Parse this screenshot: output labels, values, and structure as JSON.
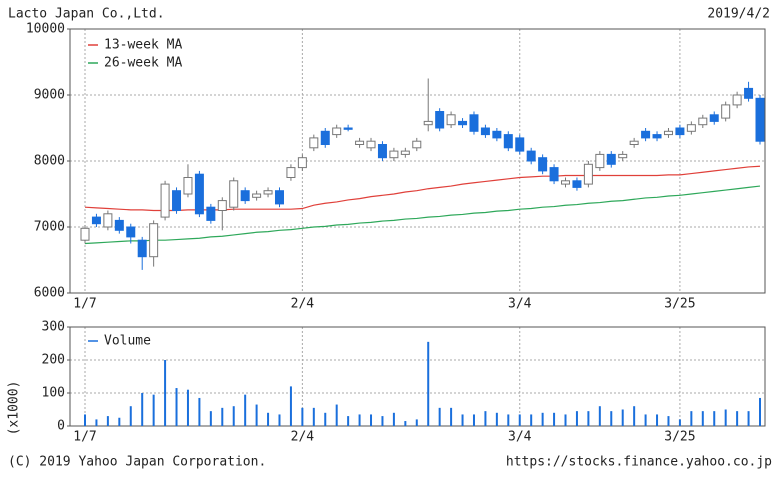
{
  "header": {
    "company": "Lacto Japan Co.,Ltd.",
    "date": "2019/4/2"
  },
  "footer": {
    "copyright": "(C) 2019 Yahoo Japan Corporation.",
    "url": "https://stocks.finance.yahoo.co.jp"
  },
  "chart_data": [
    {
      "type": "candlestick",
      "categories": [
        "1/7",
        null,
        null,
        null,
        null,
        null,
        null,
        null,
        null,
        null,
        null,
        null,
        null,
        null,
        null,
        null,
        null,
        null,
        null,
        "2/4",
        null,
        null,
        null,
        null,
        null,
        null,
        null,
        null,
        null,
        null,
        null,
        null,
        null,
        null,
        null,
        null,
        null,
        null,
        "3/4",
        null,
        null,
        null,
        null,
        null,
        null,
        null,
        null,
        null,
        null,
        null,
        null,
        null,
        "3/25",
        null,
        null,
        null,
        null,
        null,
        null,
        null
      ],
      "open": [
        6800,
        7150,
        7000,
        7100,
        7000,
        6800,
        6550,
        7150,
        7550,
        7500,
        7800,
        7300,
        7250,
        7300,
        7550,
        7450,
        7500,
        7550,
        7750,
        7900,
        8200,
        8450,
        8400,
        8500,
        8250,
        8200,
        8250,
        8050,
        8100,
        8200,
        8550,
        8750,
        8550,
        8600,
        8700,
        8500,
        8450,
        8400,
        8350,
        8150,
        8050,
        7900,
        7650,
        7700,
        7650,
        7900,
        8100,
        8050,
        8250,
        8450,
        8400,
        8400,
        8500,
        8450,
        8550,
        8700,
        8650,
        8850,
        9100,
        8950
      ],
      "high": [
        7030,
        7200,
        7250,
        7150,
        7050,
        6850,
        7100,
        7700,
        7600,
        7950,
        7850,
        7350,
        7450,
        7750,
        7600,
        7550,
        7600,
        7600,
        7950,
        8100,
        8400,
        8500,
        8550,
        8550,
        8350,
        8350,
        8300,
        8200,
        8200,
        8350,
        9250,
        8800,
        8750,
        8650,
        8750,
        8550,
        8500,
        8450,
        8400,
        8200,
        8100,
        7950,
        7750,
        7750,
        8000,
        8150,
        8150,
        8150,
        8350,
        8500,
        8450,
        8500,
        8550,
        8600,
        8700,
        8750,
        8900,
        9050,
        9200,
        9000
      ],
      "low": [
        6750,
        7000,
        6950,
        6900,
        6750,
        6350,
        6400,
        7100,
        7200,
        7450,
        7150,
        7050,
        6950,
        7250,
        7350,
        7400,
        7450,
        7300,
        7700,
        7850,
        8150,
        8200,
        8350,
        8450,
        8200,
        8150,
        8000,
        8000,
        8050,
        8150,
        8450,
        8450,
        8500,
        8500,
        8400,
        8350,
        8300,
        8150,
        8100,
        7950,
        7800,
        7650,
        7600,
        7550,
        7600,
        7850,
        7900,
        8000,
        8200,
        8300,
        8300,
        8350,
        8350,
        8400,
        8500,
        8550,
        8600,
        8800,
        8900,
        8250
      ],
      "close": [
        6980,
        7050,
        7200,
        6950,
        6850,
        6550,
        7050,
        7650,
        7250,
        7750,
        7200,
        7100,
        7400,
        7700,
        7400,
        7500,
        7550,
        7350,
        7900,
        8050,
        8350,
        8250,
        8500,
        8480,
        8300,
        8300,
        8050,
        8150,
        8150,
        8300,
        8600,
        8500,
        8700,
        8550,
        8450,
        8400,
        8350,
        8200,
        8150,
        8000,
        7850,
        7700,
        7700,
        7600,
        7950,
        8100,
        7950,
        8100,
        8300,
        8350,
        8350,
        8450,
        8400,
        8550,
        8650,
        8600,
        8850,
        9000,
        8950,
        8300
      ],
      "up_color": "#ffffff",
      "down_color": "#1a6fdc",
      "series": [
        {
          "name": "13-week MA",
          "color": "#e0403a",
          "values": [
            7300,
            7290,
            7280,
            7270,
            7260,
            7260,
            7250,
            7250,
            7250,
            7260,
            7260,
            7260,
            7260,
            7270,
            7270,
            7270,
            7270,
            7270,
            7270,
            7280,
            7330,
            7360,
            7380,
            7410,
            7430,
            7460,
            7480,
            7500,
            7530,
            7550,
            7580,
            7600,
            7620,
            7650,
            7670,
            7690,
            7710,
            7730,
            7750,
            7760,
            7770,
            7770,
            7780,
            7780,
            7780,
            7780,
            7780,
            7780,
            7780,
            7780,
            7780,
            7790,
            7790,
            7810,
            7830,
            7850,
            7870,
            7890,
            7910,
            7920
          ]
        },
        {
          "name": "26-week MA",
          "color": "#2ea85a",
          "values": [
            6750,
            6760,
            6770,
            6780,
            6790,
            6790,
            6800,
            6800,
            6810,
            6820,
            6830,
            6850,
            6860,
            6880,
            6900,
            6920,
            6930,
            6950,
            6960,
            6980,
            7000,
            7010,
            7030,
            7040,
            7060,
            7070,
            7090,
            7100,
            7120,
            7130,
            7150,
            7160,
            7180,
            7190,
            7210,
            7220,
            7240,
            7250,
            7270,
            7280,
            7300,
            7310,
            7330,
            7340,
            7360,
            7370,
            7390,
            7400,
            7420,
            7440,
            7450,
            7470,
            7480,
            7500,
            7520,
            7540,
            7560,
            7580,
            7600,
            7620
          ]
        }
      ],
      "ylim": [
        6000,
        10000
      ],
      "yticks": [
        6000,
        7000,
        8000,
        9000,
        10000
      ],
      "grid": true
    },
    {
      "type": "bar",
      "categories": [
        "1/7",
        null,
        null,
        null,
        null,
        null,
        null,
        null,
        null,
        null,
        null,
        null,
        null,
        null,
        null,
        null,
        null,
        null,
        null,
        "2/4",
        null,
        null,
        null,
        null,
        null,
        null,
        null,
        null,
        null,
        null,
        null,
        null,
        null,
        null,
        null,
        null,
        null,
        null,
        "3/4",
        null,
        null,
        null,
        null,
        null,
        null,
        null,
        null,
        null,
        null,
        null,
        null,
        null,
        "3/25",
        null,
        null,
        null,
        null,
        null,
        null,
        null
      ],
      "series": [
        {
          "name": "Volume",
          "color": "#1a6fdc",
          "values": [
            35,
            20,
            30,
            25,
            60,
            100,
            95,
            200,
            115,
            110,
            85,
            45,
            55,
            60,
            95,
            65,
            40,
            35,
            120,
            55,
            55,
            40,
            65,
            30,
            35,
            35,
            30,
            40,
            15,
            20,
            255,
            55,
            55,
            35,
            35,
            45,
            40,
            35,
            35,
            35,
            40,
            40,
            35,
            45,
            45,
            60,
            45,
            50,
            60,
            35,
            35,
            30,
            20,
            45,
            45,
            45,
            50,
            45,
            45,
            85
          ]
        }
      ],
      "y_label": "(x1000)",
      "ylim": [
        0,
        300
      ],
      "yticks": [
        0,
        100,
        200,
        300
      ],
      "grid": true
    }
  ]
}
